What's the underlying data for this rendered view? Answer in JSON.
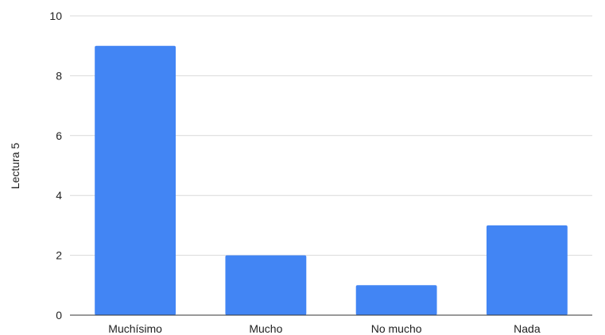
{
  "chart_data": {
    "type": "bar",
    "categories": [
      "Muchísimo",
      "Mucho",
      "No mucho",
      "Nada"
    ],
    "values": [
      9,
      2,
      1,
      3
    ],
    "title": "",
    "xlabel": "",
    "ylabel": "Lectura 5",
    "ylim": [
      0,
      10
    ],
    "yticks": [
      0,
      2,
      4,
      6,
      8,
      10
    ],
    "grid": true,
    "legend": "none",
    "bar_color": "#4285f4"
  }
}
